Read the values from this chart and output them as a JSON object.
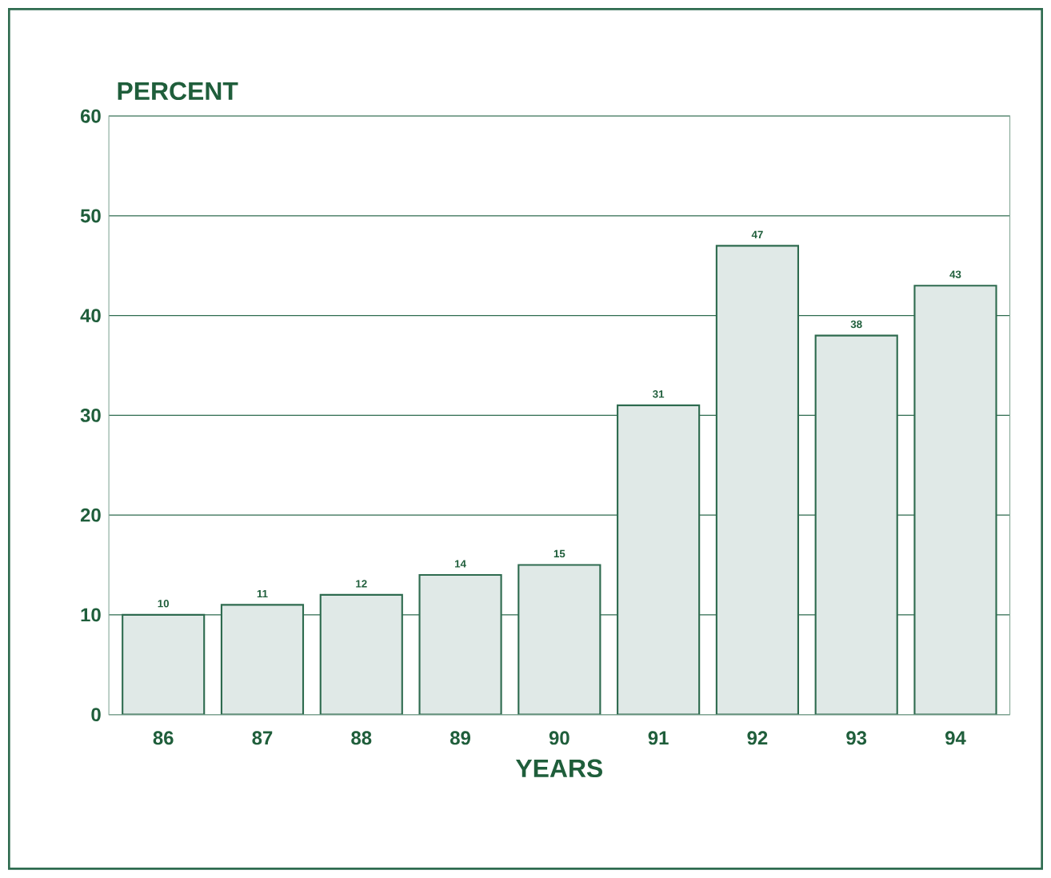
{
  "chart_data": {
    "type": "bar",
    "ylabel": "PERCENT",
    "xlabel": "YEARS",
    "categories": [
      "86",
      "87",
      "88",
      "89",
      "90",
      "91",
      "92",
      "93",
      "94"
    ],
    "values": [
      10,
      11,
      12,
      14,
      15,
      31,
      47,
      38,
      43
    ],
    "color": "#e0e9e7",
    "ylim": [
      0,
      60
    ],
    "yticks": [
      0,
      10,
      20,
      30,
      40,
      50,
      60
    ],
    "grid": "y",
    "data_labels": true
  }
}
